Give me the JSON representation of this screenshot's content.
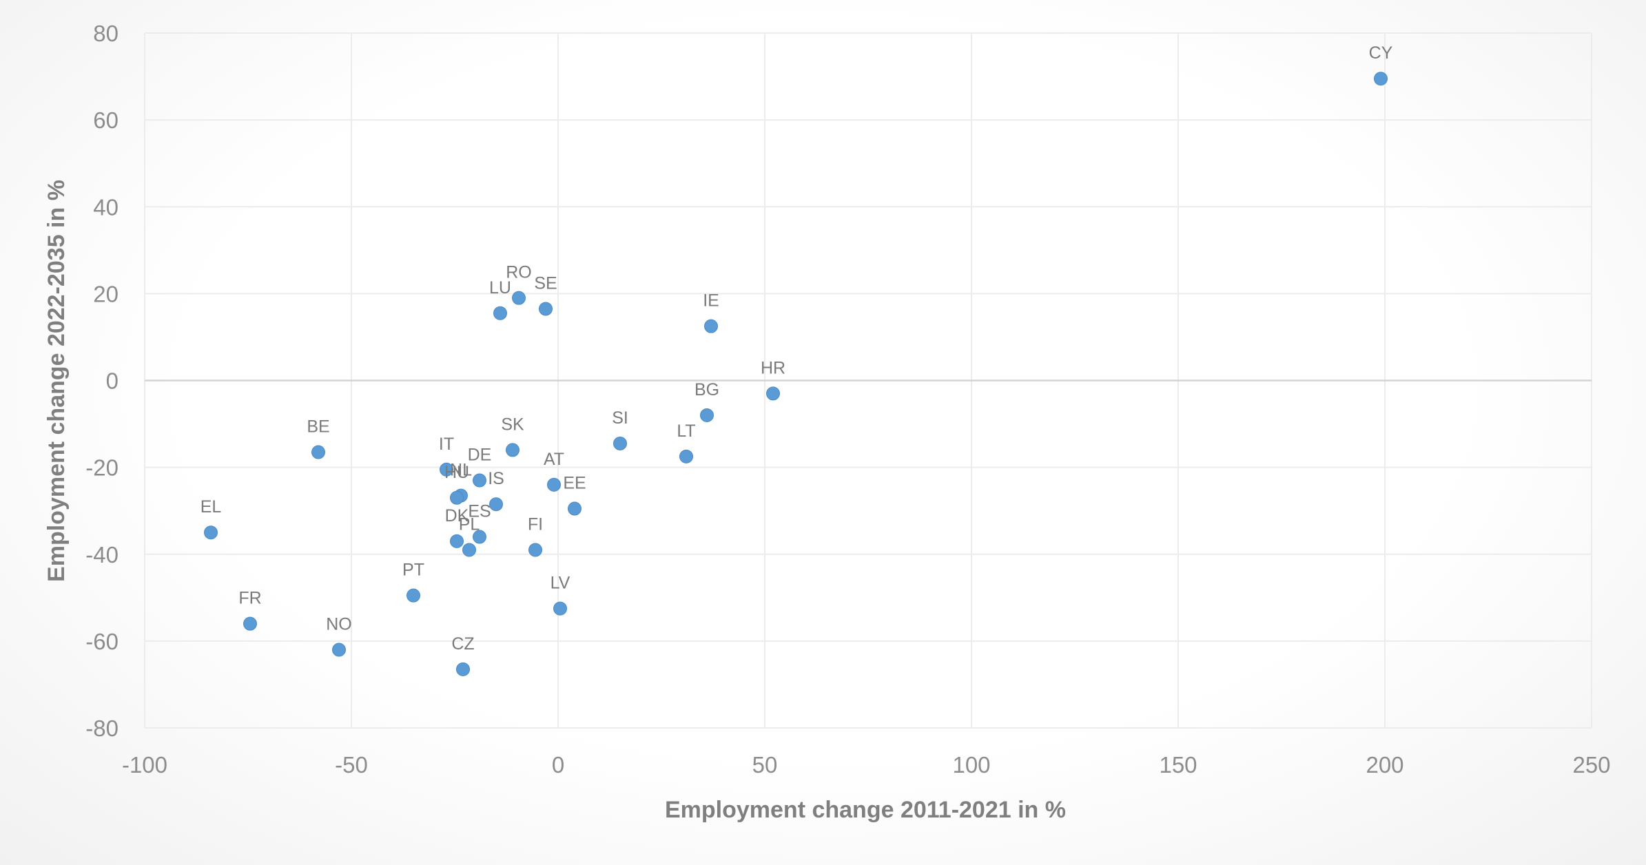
{
  "chart_data": {
    "type": "scatter",
    "title": "",
    "xlabel": "Employment change 2011-2021 in %",
    "ylabel": "Employment change 2022-2035 in %",
    "xlim": [
      -100,
      250
    ],
    "ylim": [
      -80,
      80
    ],
    "x_ticks": [
      "-100",
      "-50",
      "0",
      "50",
      "100",
      "150",
      "200",
      "250"
    ],
    "y_ticks": [
      "80",
      "60",
      "40",
      "20",
      "0",
      "-20",
      "-40",
      "-60",
      "-80"
    ],
    "grid": true,
    "marker_color": "#5b9bd5",
    "points": [
      {
        "label": "CY",
        "x": 199,
        "y": 69.5
      },
      {
        "label": "RO",
        "x": -9.5,
        "y": 19
      },
      {
        "label": "SE",
        "x": -3,
        "y": 16.5
      },
      {
        "label": "LU",
        "x": -14,
        "y": 15.5
      },
      {
        "label": "IE",
        "x": 37,
        "y": 12.5
      },
      {
        "label": "HR",
        "x": 52,
        "y": -3
      },
      {
        "label": "BG",
        "x": 36,
        "y": -8
      },
      {
        "label": "SI",
        "x": 15,
        "y": -14.5
      },
      {
        "label": "LT",
        "x": 31,
        "y": -17.5
      },
      {
        "label": "BE",
        "x": -58,
        "y": -16.5
      },
      {
        "label": "SK",
        "x": -11,
        "y": -16
      },
      {
        "label": "IT",
        "x": -27,
        "y": -20.5
      },
      {
        "label": "DE",
        "x": -19,
        "y": -23
      },
      {
        "label": "AT",
        "x": -1,
        "y": -24
      },
      {
        "label": "NL",
        "x": -23.5,
        "y": -26.5
      },
      {
        "label": "HU",
        "x": -24.5,
        "y": -27
      },
      {
        "label": "IS",
        "x": -15,
        "y": -28.5
      },
      {
        "label": "EE",
        "x": 4,
        "y": -29.5
      },
      {
        "label": "EL",
        "x": -84,
        "y": -35
      },
      {
        "label": "ES",
        "x": -19,
        "y": -36
      },
      {
        "label": "DK",
        "x": -24.5,
        "y": -37
      },
      {
        "label": "PL",
        "x": -21.5,
        "y": -39
      },
      {
        "label": "FI",
        "x": -5.5,
        "y": -39
      },
      {
        "label": "PT",
        "x": -35,
        "y": -49.5
      },
      {
        "label": "LV",
        "x": 0.5,
        "y": -52.5
      },
      {
        "label": "FR",
        "x": -74.5,
        "y": -56
      },
      {
        "label": "NO",
        "x": -53,
        "y": -62
      },
      {
        "label": "CZ",
        "x": -23,
        "y": -66.5
      }
    ]
  }
}
